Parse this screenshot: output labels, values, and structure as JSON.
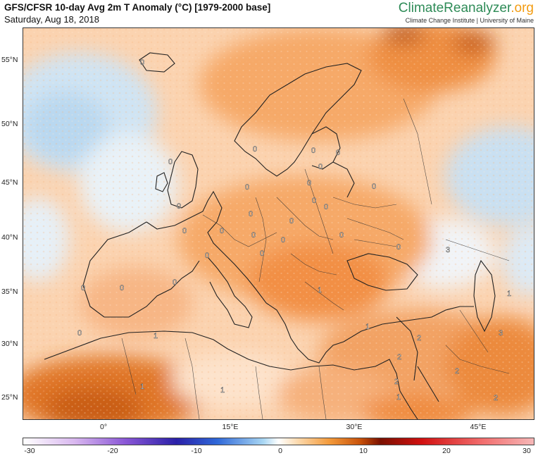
{
  "header": {
    "title": "GFS/CFSR 10-day Avg 2m T Anomaly (°C) [1979-2000 base]",
    "date": "Saturday, Aug 18, 2018"
  },
  "brand": {
    "name_part1": "ClimateReanalyzer",
    "name_part2": ".org",
    "subtitle": "Climate Change Institute | University of Maine"
  },
  "map": {
    "lat_labels": [
      "55°N",
      "50°N",
      "45°N",
      "40°N",
      "35°N",
      "30°N",
      "25°N"
    ],
    "lon_labels": [
      "0°",
      "15°E",
      "30°E",
      "45°E"
    ],
    "contour_labels": [
      "0",
      "0",
      "0",
      "0",
      "0",
      "0",
      "0",
      "0",
      "0",
      "0",
      "0",
      "0",
      "0",
      "0",
      "0",
      "0",
      "0",
      "0",
      "0",
      "0",
      "0",
      "0",
      "1",
      "1",
      "1",
      "1",
      "1",
      "1",
      "2",
      "2",
      "2",
      "2",
      "2",
      "3",
      "3",
      "0",
      "1",
      "0",
      "0",
      "0"
    ]
  },
  "colorbar": {
    "ticks": [
      "-30",
      "-20",
      "-10",
      "0",
      "10",
      "20",
      "30"
    ],
    "colors": {
      "cold_extreme": "#2a20a8",
      "neutral": "#ffffff",
      "warm": "#f39a3a",
      "hot": "#7a1000"
    }
  }
}
